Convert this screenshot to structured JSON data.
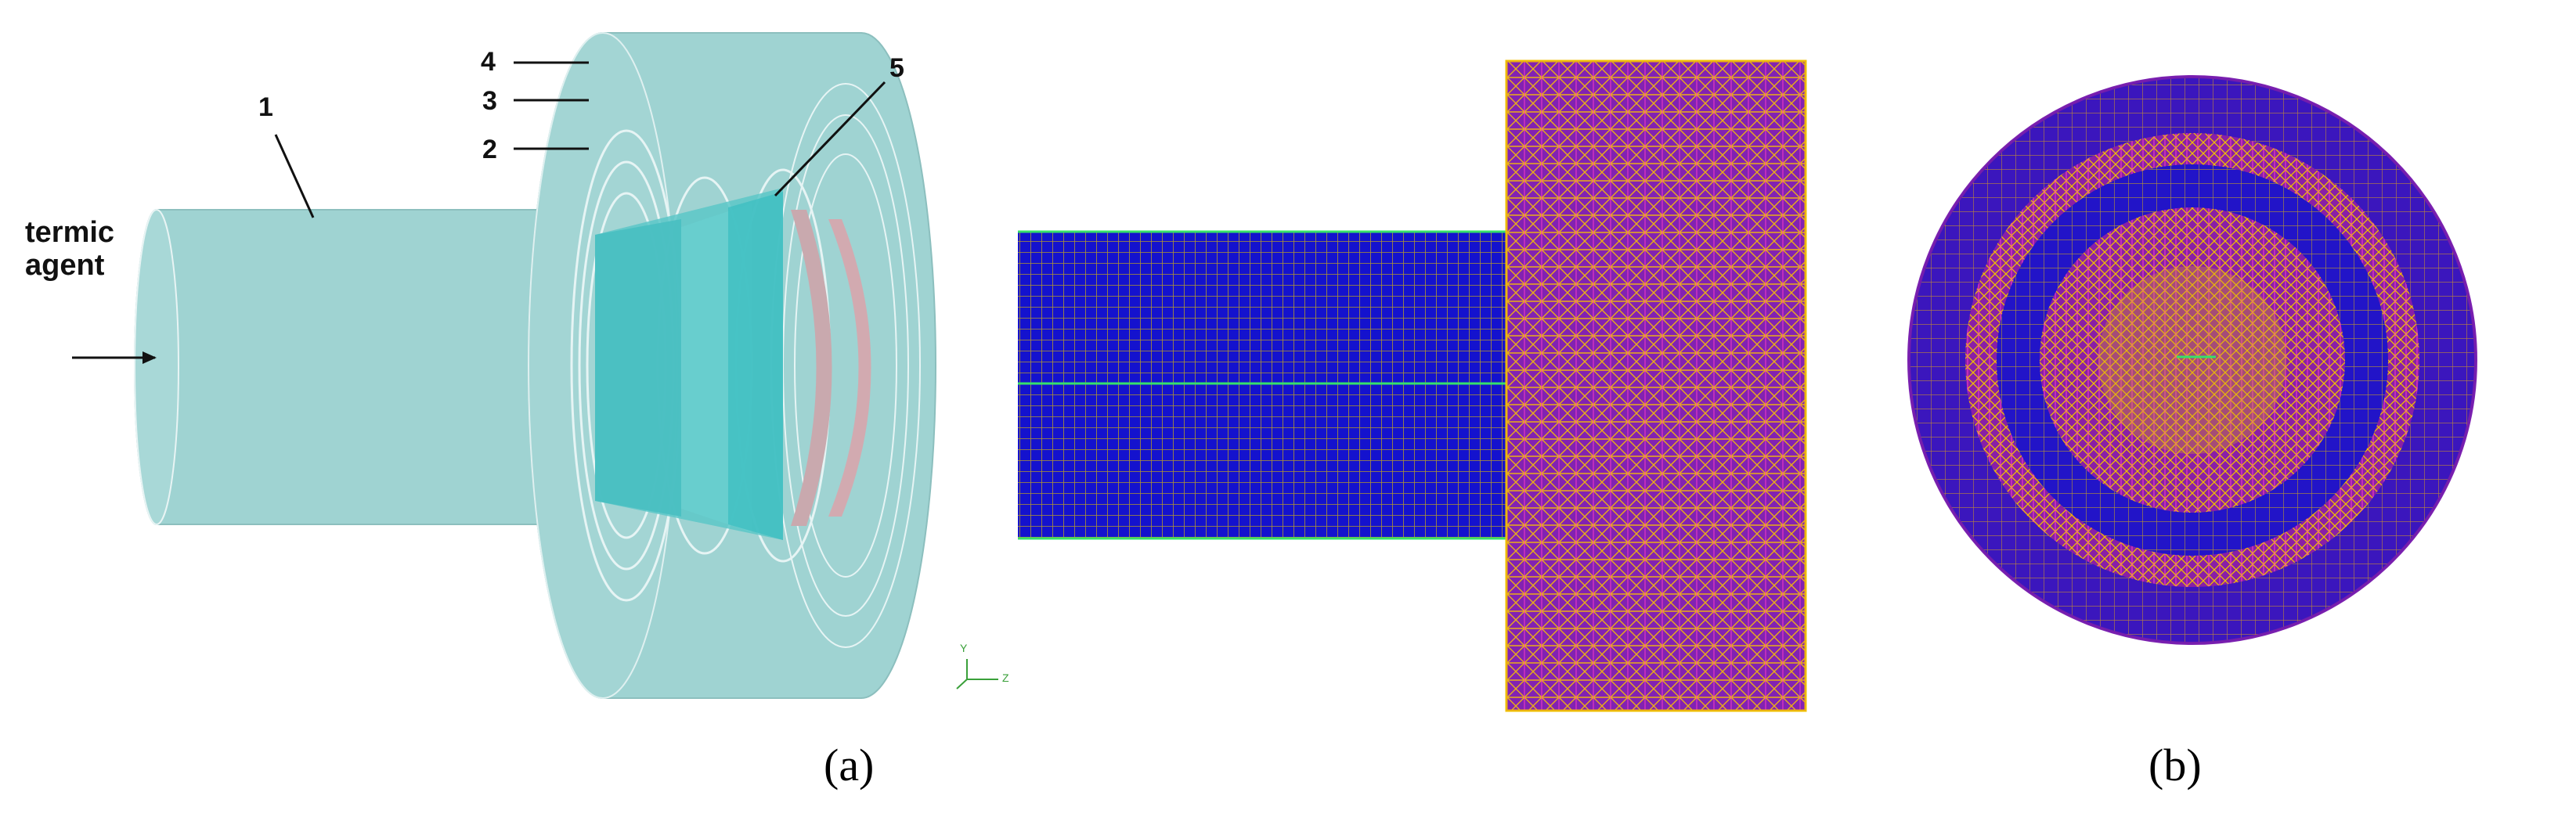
{
  "panel_a": {
    "part_labels": [
      "1",
      "2",
      "3",
      "4",
      "5"
    ],
    "inlet_label_line1": "termic",
    "inlet_label_line2": "agent",
    "axis_y": "Y",
    "axis_z": "Z",
    "caption": "(a)"
  },
  "panel_b": {
    "caption": "(b)"
  },
  "colors": {
    "body": "#9fd3d2",
    "body_dark": "#7fc1c0",
    "inner_cone": "#4fc6c8",
    "seal_ring": "#c9a9ae",
    "mesh_blue": "#1a14d8",
    "mesh_magenta": "#8a1fa6",
    "mesh_yellow": "#f2c200",
    "mesh_green": "#36e06a"
  }
}
